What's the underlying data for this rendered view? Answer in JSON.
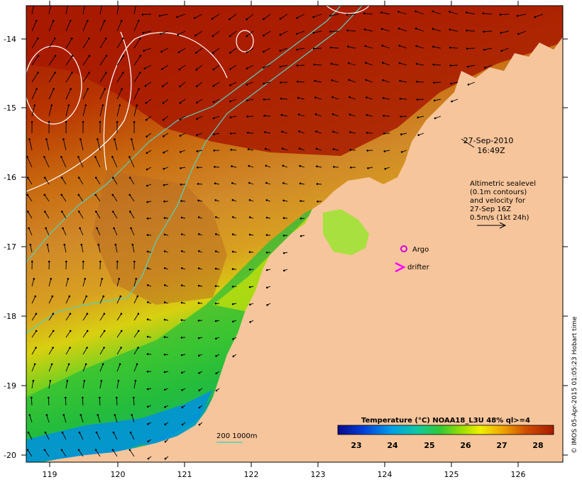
{
  "map": {
    "date": "27-Sep-2010",
    "time": "16:49Z",
    "altimetry_note": [
      "Altimetric sealevel",
      "(0.1m contours)",
      "and velocity for",
      "27-Sep 16Z",
      "0.5m/s (1kt 24h)"
    ],
    "legend": {
      "argo": "Argo",
      "drifter": "drifter"
    },
    "bathymetry_label": "200  1000m",
    "colorbar": {
      "title": "Temperature (°C) NOAA18_L3U 48% ql>=4",
      "ticks": [
        "23",
        "24",
        "25",
        "26",
        "27",
        "28"
      ]
    },
    "credit": "© IMOS 05-Apr-2015 01:05:23 Hobart time",
    "lat_ticks": [
      "-14",
      "-15",
      "-16",
      "-17",
      "-18",
      "-19",
      "-20"
    ],
    "lon_ticks": [
      "119",
      "120",
      "121",
      "122",
      "123",
      "124",
      "125",
      "126"
    ],
    "colors": {
      "land": "#f7c59b",
      "warm": "#a81a00",
      "argo": "#d000e0",
      "drifter": "#ff00ff",
      "isobath": "#4fd4c0"
    }
  }
}
